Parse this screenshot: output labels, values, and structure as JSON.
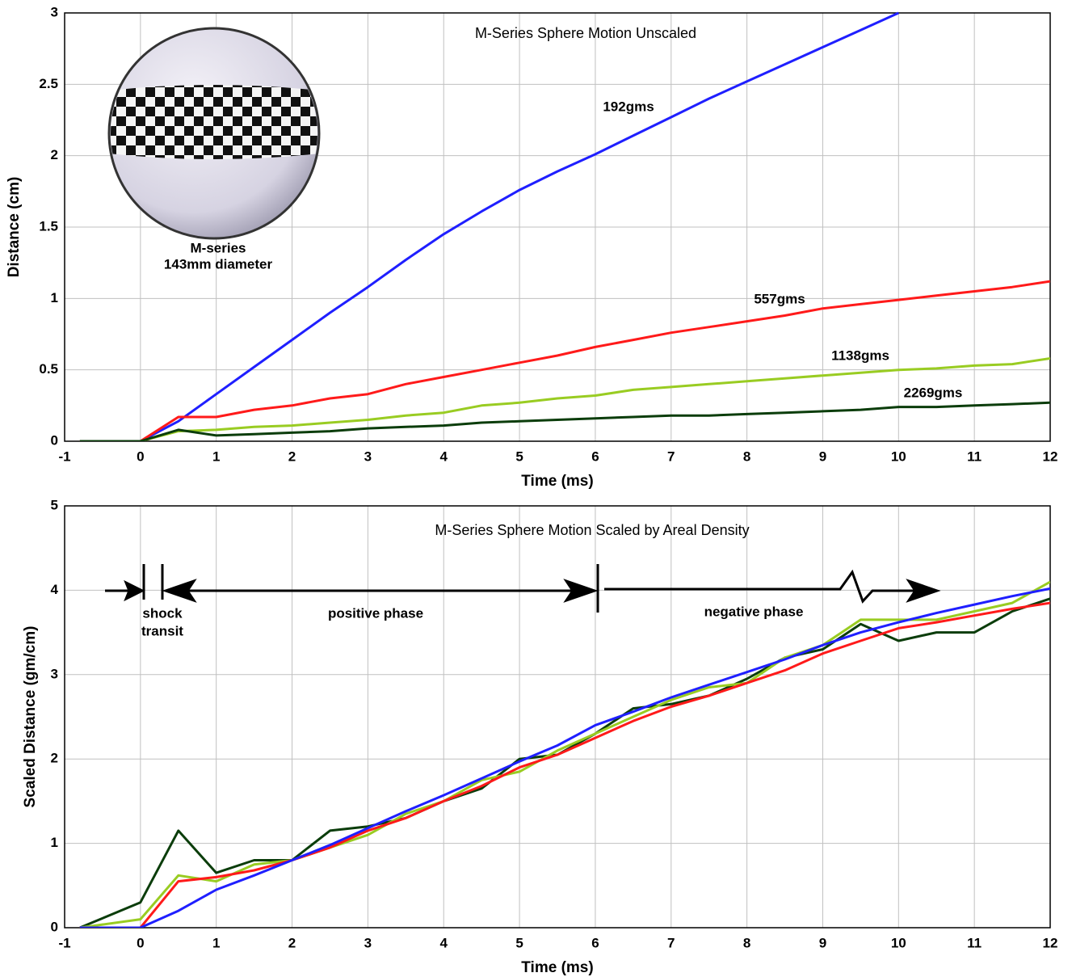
{
  "chart_data": [
    {
      "type": "line",
      "title": "M-Series Sphere Motion Unscaled",
      "x_label": "Time (ms)",
      "y_label": "Distance (cm)",
      "inset_caption": [
        "M-series",
        "143mm diameter"
      ],
      "xlim": [
        -1,
        12
      ],
      "xticks": [
        -1,
        0,
        1,
        2,
        3,
        4,
        5,
        6,
        7,
        8,
        9,
        10,
        11,
        12
      ],
      "ylim": [
        0,
        3
      ],
      "yticks": [
        0,
        0.5,
        1,
        1.5,
        2,
        2.5,
        3
      ],
      "grid": true,
      "x": [
        -0.8,
        0,
        0.5,
        1,
        1.5,
        2,
        2.5,
        3,
        3.5,
        4,
        4.5,
        5,
        5.5,
        6,
        6.5,
        7,
        7.5,
        8,
        8.5,
        9,
        9.5,
        10,
        10.5,
        11,
        11.5,
        12
      ],
      "series": [
        {
          "name": "192gms",
          "color": "#1f1fff",
          "values": [
            0,
            0,
            0.14,
            0.33,
            0.52,
            0.71,
            0.9,
            1.08,
            1.27,
            1.45,
            1.61,
            1.76,
            1.89,
            2.01,
            2.14,
            2.27,
            2.4,
            2.52,
            2.64,
            2.76,
            2.88,
            3.0,
            null,
            null,
            null,
            null
          ]
        },
        {
          "name": "557gms",
          "color": "#ff1a1a",
          "values": [
            0,
            0,
            0.17,
            0.17,
            0.22,
            0.25,
            0.3,
            0.33,
            0.4,
            0.45,
            0.5,
            0.55,
            0.6,
            0.66,
            0.71,
            0.76,
            0.8,
            0.84,
            0.88,
            0.93,
            0.96,
            0.99,
            1.02,
            1.05,
            1.08,
            1.12
          ]
        },
        {
          "name": "1138gms",
          "color": "#99cc22",
          "values": [
            0,
            0,
            0.07,
            0.08,
            0.1,
            0.11,
            0.13,
            0.15,
            0.18,
            0.2,
            0.25,
            0.27,
            0.3,
            0.32,
            0.36,
            0.38,
            0.4,
            0.42,
            0.44,
            0.46,
            0.48,
            0.5,
            0.51,
            0.53,
            0.54,
            0.58
          ]
        },
        {
          "name": "2269gms",
          "color": "#0b3d0b",
          "values": [
            0,
            0,
            0.08,
            0.04,
            0.05,
            0.06,
            0.07,
            0.09,
            0.1,
            0.11,
            0.13,
            0.14,
            0.15,
            0.16,
            0.17,
            0.18,
            0.18,
            0.19,
            0.2,
            0.21,
            0.22,
            0.24,
            0.24,
            0.25,
            0.26,
            0.27
          ]
        }
      ]
    },
    {
      "type": "line",
      "title": "M-Series Sphere Motion Scaled by Areal Density",
      "x_label": "Time (ms)",
      "y_label": "Scaled Distance (gm/cm)",
      "annotations": [
        "shock",
        "transit",
        "positive phase",
        "negative phase"
      ],
      "xlim": [
        -1,
        12
      ],
      "xticks": [
        -1,
        0,
        1,
        2,
        3,
        4,
        5,
        6,
        7,
        8,
        9,
        10,
        11,
        12
      ],
      "ylim": [
        0,
        5
      ],
      "yticks": [
        0,
        1,
        2,
        3,
        4,
        5
      ],
      "grid": true,
      "x": [
        -0.8,
        0,
        0.5,
        1,
        1.5,
        2,
        2.5,
        3,
        3.5,
        4,
        4.5,
        5,
        5.5,
        6,
        6.5,
        7,
        7.5,
        8,
        8.5,
        9,
        9.5,
        10,
        10.5,
        11,
        11.5,
        12
      ],
      "series": [
        {
          "color": "#0b3d0b",
          "values": [
            0,
            0.3,
            1.15,
            0.65,
            0.8,
            0.8,
            1.15,
            1.2,
            1.3,
            1.5,
            1.65,
            2.0,
            2.05,
            2.3,
            2.6,
            2.65,
            2.75,
            2.95,
            3.2,
            3.3,
            3.6,
            3.4,
            3.5,
            3.5,
            3.75,
            3.9
          ]
        },
        {
          "color": "#99cc22",
          "values": [
            0,
            0.1,
            0.62,
            0.55,
            0.75,
            0.8,
            0.95,
            1.1,
            1.35,
            1.5,
            1.75,
            1.85,
            2.1,
            2.3,
            2.5,
            2.7,
            2.85,
            2.9,
            3.2,
            3.35,
            3.65,
            3.65,
            3.65,
            3.75,
            3.85,
            4.1
          ]
        },
        {
          "color": "#ff1a1a",
          "values": [
            0,
            0,
            0.55,
            0.6,
            0.68,
            0.8,
            0.95,
            1.15,
            1.3,
            1.5,
            1.68,
            1.9,
            2.05,
            2.25,
            2.45,
            2.62,
            2.75,
            2.9,
            3.05,
            3.25,
            3.4,
            3.55,
            3.62,
            3.7,
            3.78,
            3.85
          ]
        },
        {
          "color": "#1f1fff",
          "values": [
            0,
            0,
            0.2,
            0.45,
            0.62,
            0.8,
            0.98,
            1.18,
            1.38,
            1.57,
            1.77,
            1.97,
            2.16,
            2.4,
            2.56,
            2.73,
            2.88,
            3.03,
            3.18,
            3.35,
            3.5,
            3.62,
            3.73,
            3.83,
            3.93,
            4.02
          ]
        }
      ]
    }
  ]
}
